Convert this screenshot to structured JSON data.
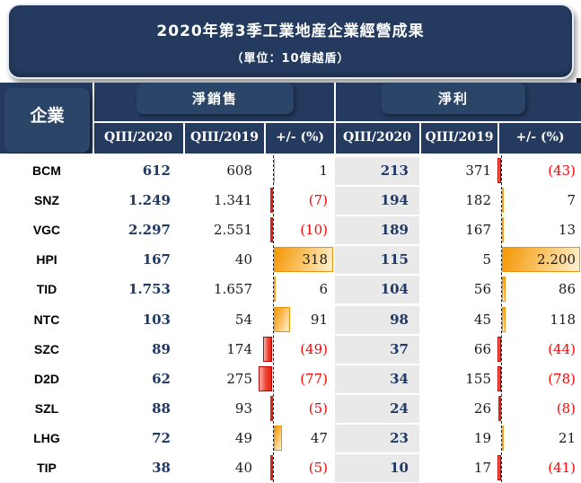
{
  "title": {
    "text": "2020年第3季工業地産企業經營成果",
    "subtitle": "（單位：10億越盾）"
  },
  "table": {
    "company_header": "企業",
    "groups": [
      {
        "label": "淨銷售"
      },
      {
        "label": "淨利"
      }
    ],
    "sub_headers": [
      "QIII/2020",
      "QIII/2019",
      "+/- (%)"
    ],
    "rows": [
      {
        "company": "BCM",
        "ns_2020": "612",
        "ns_2019": "608",
        "ns_pct": "1",
        "np_2020": "213",
        "np_2019": "371",
        "np_pct": "(43)",
        "ns_pct_value": 1,
        "np_pct_value": -43
      },
      {
        "company": "SNZ",
        "ns_2020": "1.249",
        "ns_2019": "1.341",
        "ns_pct": "(7)",
        "np_2020": "194",
        "np_2019": "182",
        "np_pct": "7",
        "ns_pct_value": -7,
        "np_pct_value": 7
      },
      {
        "company": "VGC",
        "ns_2020": "2.297",
        "ns_2019": "2.551",
        "ns_pct": "(10)",
        "np_2020": "189",
        "np_2019": "167",
        "np_pct": "13",
        "ns_pct_value": -10,
        "np_pct_value": 13
      },
      {
        "company": "HPI",
        "ns_2020": "167",
        "ns_2019": "40",
        "ns_pct": "318",
        "np_2020": "115",
        "np_2019": "5",
        "np_pct": "2.200",
        "ns_pct_value": 318,
        "np_pct_value": 2200
      },
      {
        "company": "TID",
        "ns_2020": "1.753",
        "ns_2019": "1.657",
        "ns_pct": "6",
        "np_2020": "104",
        "np_2019": "56",
        "np_pct": "86",
        "ns_pct_value": 6,
        "np_pct_value": 86
      },
      {
        "company": "NTC",
        "ns_2020": "103",
        "ns_2019": "54",
        "ns_pct": "91",
        "np_2020": "98",
        "np_2019": "45",
        "np_pct": "118",
        "ns_pct_value": 91,
        "np_pct_value": 118
      },
      {
        "company": "SZC",
        "ns_2020": "89",
        "ns_2019": "174",
        "ns_pct": "(49)",
        "np_2020": "37",
        "np_2019": "66",
        "np_pct": "(44)",
        "ns_pct_value": -49,
        "np_pct_value": -44
      },
      {
        "company": "D2D",
        "ns_2020": "62",
        "ns_2019": "275",
        "ns_pct": "(77)",
        "np_2020": "34",
        "np_2019": "155",
        "np_pct": "(78)",
        "ns_pct_value": -77,
        "np_pct_value": -78
      },
      {
        "company": "SZL",
        "ns_2020": "88",
        "ns_2019": "93",
        "ns_pct": "(5)",
        "np_2020": "24",
        "np_2019": "26",
        "np_pct": "(8)",
        "ns_pct_value": -5,
        "np_pct_value": -8
      },
      {
        "company": "LHG",
        "ns_2020": "72",
        "ns_2019": "49",
        "ns_pct": "47",
        "np_2020": "23",
        "np_2019": "19",
        "np_pct": "21",
        "ns_pct_value": 47,
        "np_pct_value": 21
      },
      {
        "company": "TIP",
        "ns_2020": "38",
        "ns_2019": "40",
        "ns_pct": "(5)",
        "np_2020": "10",
        "np_2019": "17",
        "np_pct": "(41)",
        "ns_pct_value": -5,
        "np_pct_value": -41
      }
    ]
  },
  "chart_data": {
    "type": "table",
    "title": "2020年第3季工業地産企業經營成果",
    "unit_note": "（單位：10億越盾）",
    "categories": [
      "BCM",
      "SNZ",
      "VGC",
      "HPI",
      "TID",
      "NTC",
      "SZC",
      "D2D",
      "SZL",
      "LHG",
      "TIP"
    ],
    "series": [
      {
        "name": "淨銷售 QIII/2020",
        "values": [
          612,
          1249,
          2297,
          167,
          1753,
          103,
          89,
          62,
          88,
          72,
          38
        ]
      },
      {
        "name": "淨銷售 QIII/2019",
        "values": [
          608,
          1341,
          2551,
          40,
          1657,
          54,
          174,
          275,
          93,
          49,
          40
        ]
      },
      {
        "name": "淨銷售 +/- (%)",
        "type": "bar",
        "values": [
          1,
          -7,
          -10,
          318,
          6,
          91,
          -49,
          -77,
          -5,
          47,
          -5
        ],
        "bar_axis_reference": 318
      },
      {
        "name": "淨利 QIII/2020",
        "values": [
          213,
          194,
          189,
          115,
          104,
          98,
          37,
          34,
          24,
          23,
          10
        ]
      },
      {
        "name": "淨利 QIII/2019",
        "values": [
          371,
          182,
          167,
          5,
          56,
          45,
          66,
          155,
          26,
          19,
          17
        ]
      },
      {
        "name": "淨利 +/- (%)",
        "type": "bar",
        "values": [
          -43,
          7,
          13,
          2200,
          86,
          118,
          -44,
          -78,
          -8,
          21,
          -41
        ],
        "bar_axis_reference": 2200
      }
    ],
    "notes": "Negative percentages shown in red parentheses with red bars left of dashed axis; positive with orange gradient bars right of dashed axis"
  },
  "colors": {
    "navy_background": "#243B5F",
    "navy_number_text": "#1F3864",
    "negative_red_text": "#FE0000",
    "bar_orange": "#F5A11C",
    "bar_red": "#E02315",
    "gray_column": "#E9E9E9"
  }
}
